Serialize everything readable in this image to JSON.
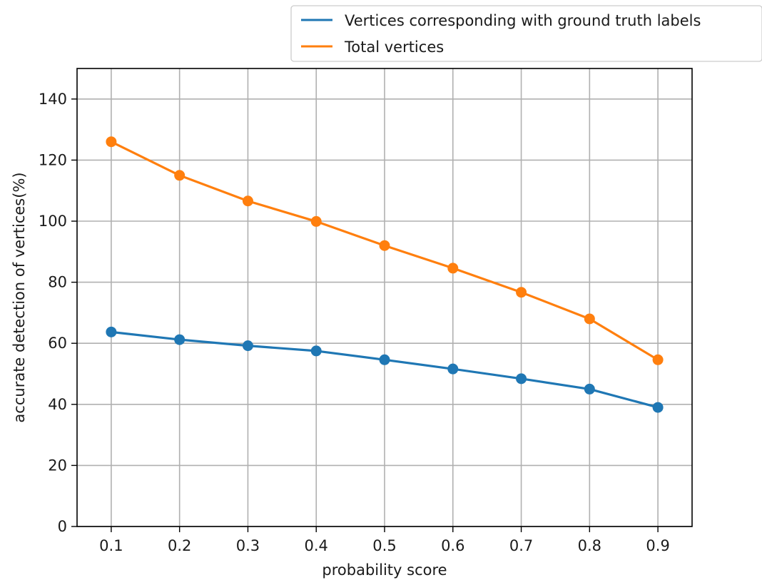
{
  "chart_data": {
    "type": "line",
    "xlabel": "probability score",
    "ylabel": "accurate detection of vertices(%)",
    "x": [
      0.1,
      0.2,
      0.3,
      0.4,
      0.5,
      0.6,
      0.7,
      0.8,
      0.9
    ],
    "x_tick_labels": [
      "0.1",
      "0.2",
      "0.3",
      "0.4",
      "0.5",
      "0.6",
      "0.7",
      "0.8",
      "0.9"
    ],
    "xlim": [
      0.05,
      0.95
    ],
    "ylim": [
      0,
      150
    ],
    "y_ticks": [
      0,
      20,
      40,
      60,
      80,
      100,
      120,
      140
    ],
    "y_tick_labels": [
      "0",
      "20",
      "40",
      "60",
      "80",
      "100",
      "120",
      "140"
    ],
    "grid": true,
    "legend_position": "top-right, above plot",
    "series": [
      {
        "name": "Vertices corresponding with ground truth labels",
        "color": "#1f77b4",
        "values": [
          63.7,
          61.2,
          59.2,
          57.5,
          54.6,
          51.6,
          48.4,
          45.0,
          39.0
        ]
      },
      {
        "name": "Total vertices",
        "color": "#ff7f0e",
        "values": [
          126.0,
          115.0,
          106.6,
          99.9,
          92.0,
          84.6,
          76.7,
          68.0,
          54.6
        ]
      }
    ]
  }
}
